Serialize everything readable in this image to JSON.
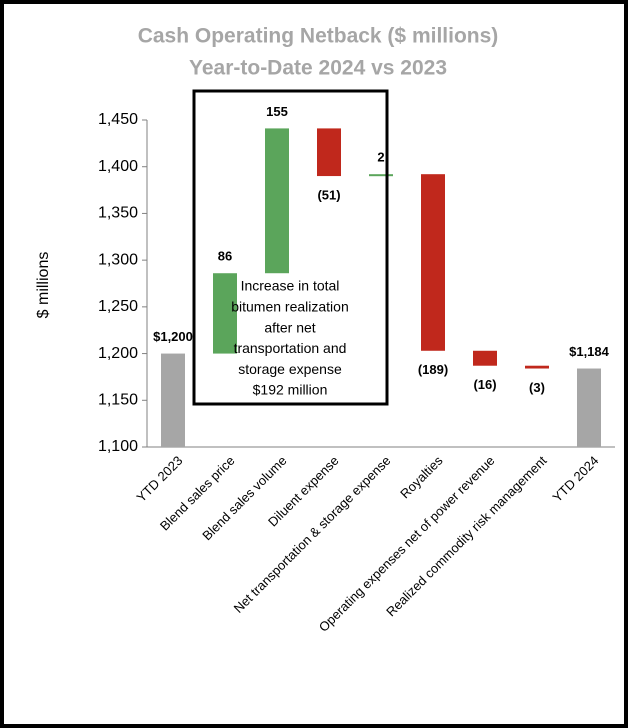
{
  "chart_data": {
    "type": "waterfall",
    "title": "Cash Operating Netback ($ millions)",
    "subtitle": "Year-to-Date 2024 vs 2023",
    "y_label": "$ millions",
    "categories": [
      "YTD 2023",
      "Blend sales price",
      "Blend sales volume",
      "Diluent expense",
      "Net transportation & storage expense",
      "Royalties",
      "Operating expenses net of power revenue",
      "Realized commodity risk management",
      "YTD 2024"
    ],
    "measure": [
      "total",
      "relative",
      "relative",
      "relative",
      "relative",
      "relative",
      "relative",
      "relative",
      "total"
    ],
    "values": [
      1200,
      86,
      155,
      -51,
      2,
      -189,
      -16,
      -3,
      1184
    ],
    "value_labels": [
      "$1,200",
      "86",
      "155",
      "(51)",
      "2",
      "(189)",
      "(16)",
      "(3)",
      "$1,184"
    ],
    "colors": {
      "total": "#a6a6a6",
      "increase": "#5ba55b",
      "decrease": "#c0281c"
    },
    "ylim": [
      1100,
      1450
    ],
    "yticks": [
      {
        "value": 1100,
        "label": "1,100"
      },
      {
        "value": 1150,
        "label": "1,150"
      },
      {
        "value": 1200,
        "label": "1,200"
      },
      {
        "value": 1250,
        "label": "1,250"
      },
      {
        "value": 1300,
        "label": "1,300"
      },
      {
        "value": 1350,
        "label": "1,350"
      },
      {
        "value": 1400,
        "label": "1,400"
      },
      {
        "value": 1450,
        "label": "1,450"
      }
    ],
    "annotation": [
      "Increase in total",
      "bitumen realization",
      "after net",
      "transportation and",
      "storage expense",
      "$192 million"
    ]
  }
}
